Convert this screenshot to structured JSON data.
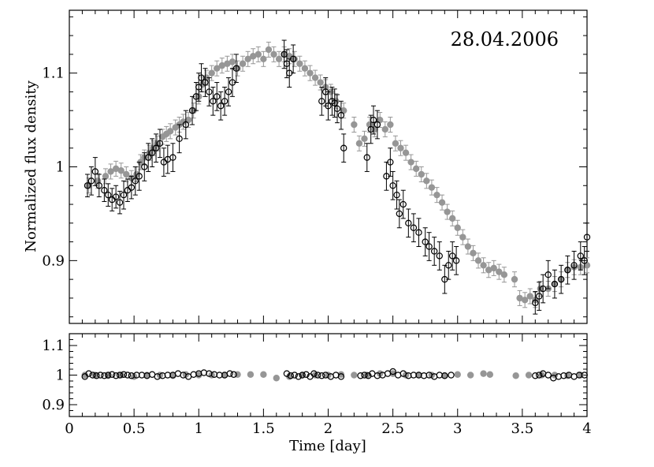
{
  "chart_data": {
    "type": "scatter",
    "annotation": "28.04.2006",
    "xlabel": "Time [day]",
    "xlim": [
      0,
      4
    ],
    "x_ticks": [
      0,
      0.5,
      1,
      1.5,
      2,
      2.5,
      3,
      3.5,
      4
    ],
    "x_tick_labels": [
      "0",
      "0.5",
      "1",
      "1.5",
      "2",
      "2.5",
      "3",
      "3.5",
      "4"
    ],
    "grid": false,
    "panels": [
      {
        "name": "top",
        "ylabel": "Normalized flux density",
        "ylim": [
          0.833,
          1.167
        ],
        "y_ticks": [
          0.9,
          1,
          1.1
        ],
        "y_tick_labels": [
          "0.9",
          "1",
          "1.1"
        ],
        "series": [
          {
            "marker": "filled-gray",
            "x": [
              0.15,
              0.22,
              0.28,
              0.32,
              0.36,
              0.4,
              0.44,
              0.48,
              0.52,
              0.55,
              0.58,
              0.62,
              0.65,
              0.68,
              0.72,
              0.75,
              0.78,
              0.82,
              0.85,
              0.88,
              0.92,
              0.96,
              1.0,
              1.03,
              1.06,
              1.1,
              1.14,
              1.18,
              1.22,
              1.26,
              1.3,
              1.34,
              1.38,
              1.42,
              1.46,
              1.5,
              1.54,
              1.58,
              1.62,
              1.66,
              1.7,
              1.74,
              1.78,
              1.82,
              1.86,
              1.9,
              1.94,
              1.98,
              2.02,
              2.06,
              2.12,
              2.2,
              2.24,
              2.28,
              2.32,
              2.36,
              2.4,
              2.44,
              2.48,
              2.52,
              2.56,
              2.6,
              2.64,
              2.68,
              2.72,
              2.76,
              2.8,
              2.84,
              2.88,
              2.92,
              2.96,
              3.0,
              3.04,
              3.08,
              3.12,
              3.16,
              3.2,
              3.24,
              3.28,
              3.32,
              3.36,
              3.44,
              3.48,
              3.52,
              3.56,
              3.6,
              3.64,
              3.7,
              3.75,
              3.8,
              3.85,
              3.9,
              3.95,
              4.0
            ],
            "y": [
              0.98,
              0.985,
              0.99,
              0.995,
              0.998,
              0.996,
              0.992,
              0.988,
              0.992,
              1.005,
              1.01,
              1.015,
              1.02,
              1.025,
              1.032,
              1.035,
              1.038,
              1.042,
              1.045,
              1.048,
              1.05,
              1.06,
              1.075,
              1.088,
              1.095,
              1.1,
              1.105,
              1.108,
              1.11,
              1.112,
              1.105,
              1.11,
              1.115,
              1.118,
              1.12,
              1.115,
              1.125,
              1.12,
              1.115,
              1.12,
              1.118,
              1.115,
              1.11,
              1.105,
              1.1,
              1.095,
              1.09,
              1.085,
              1.08,
              1.07,
              1.06,
              1.045,
              1.025,
              1.03,
              1.045,
              1.04,
              1.05,
              1.04,
              1.045,
              1.025,
              1.02,
              1.015,
              1.005,
              0.998,
              0.992,
              0.985,
              0.978,
              0.97,
              0.962,
              0.952,
              0.945,
              0.935,
              0.925,
              0.915,
              0.908,
              0.9,
              0.895,
              0.89,
              0.892,
              0.888,
              0.885,
              0.88,
              0.86,
              0.858,
              0.862,
              0.858,
              0.87,
              0.87,
              0.875,
              0.88,
              0.89,
              0.893,
              0.893,
              0.895
            ],
            "err": [
              0.008,
              0.008,
              0.008,
              0.008,
              0.008,
              0.008,
              0.008,
              0.008,
              0.008,
              0.008,
              0.008,
              0.008,
              0.008,
              0.008,
              0.008,
              0.008,
              0.008,
              0.008,
              0.008,
              0.008,
              0.008,
              0.008,
              0.008,
              0.008,
              0.008,
              0.008,
              0.008,
              0.008,
              0.008,
              0.008,
              0.008,
              0.008,
              0.008,
              0.008,
              0.008,
              0.008,
              0.008,
              0.008,
              0.008,
              0.008,
              0.008,
              0.008,
              0.008,
              0.008,
              0.008,
              0.008,
              0.008,
              0.008,
              0.008,
              0.008,
              0.008,
              0.008,
              0.008,
              0.008,
              0.008,
              0.008,
              0.008,
              0.008,
              0.008,
              0.008,
              0.008,
              0.008,
              0.008,
              0.008,
              0.008,
              0.008,
              0.008,
              0.008,
              0.008,
              0.008,
              0.008,
              0.008,
              0.008,
              0.008,
              0.008,
              0.008,
              0.008,
              0.008,
              0.008,
              0.008,
              0.008,
              0.008,
              0.008,
              0.008,
              0.008,
              0.008,
              0.008,
              0.008,
              0.008,
              0.008,
              0.008,
              0.008,
              0.008,
              0.008
            ]
          },
          {
            "marker": "open-black",
            "x": [
              0.14,
              0.17,
              0.2,
              0.23,
              0.27,
              0.3,
              0.33,
              0.36,
              0.39,
              0.42,
              0.45,
              0.48,
              0.51,
              0.54,
              0.58,
              0.61,
              0.64,
              0.67,
              0.7,
              0.73,
              0.76,
              0.8,
              0.85,
              0.9,
              0.95,
              0.98,
              1.0,
              1.02,
              1.05,
              1.08,
              1.11,
              1.14,
              1.17,
              1.2,
              1.23,
              1.26,
              1.29,
              1.66,
              1.68,
              1.7,
              1.73,
              1.95,
              1.98,
              2.0,
              2.03,
              2.05,
              2.07,
              2.1,
              2.12,
              2.3,
              2.33,
              2.35,
              2.38,
              2.45,
              2.48,
              2.5,
              2.53,
              2.55,
              2.58,
              2.62,
              2.66,
              2.7,
              2.75,
              2.78,
              2.82,
              2.86,
              2.9,
              2.93,
              2.96,
              2.99,
              3.6,
              3.63,
              3.66,
              3.7,
              3.75,
              3.8,
              3.85,
              3.9,
              3.95,
              3.98,
              4.0
            ],
            "y": [
              0.98,
              0.985,
              0.995,
              0.98,
              0.975,
              0.97,
              0.965,
              0.968,
              0.962,
              0.97,
              0.975,
              0.978,
              0.985,
              0.99,
              1.0,
              1.01,
              1.015,
              1.02,
              1.025,
              1.005,
              1.008,
              1.01,
              1.03,
              1.045,
              1.06,
              1.075,
              1.085,
              1.095,
              1.09,
              1.08,
              1.07,
              1.075,
              1.065,
              1.07,
              1.08,
              1.09,
              1.105,
              1.12,
              1.11,
              1.1,
              1.115,
              1.07,
              1.08,
              1.065,
              1.07,
              1.068,
              1.062,
              1.055,
              1.02,
              1.01,
              1.04,
              1.05,
              1.045,
              0.99,
              1.005,
              0.98,
              0.97,
              0.95,
              0.96,
              0.94,
              0.935,
              0.93,
              0.92,
              0.915,
              0.91,
              0.905,
              0.88,
              0.895,
              0.905,
              0.9,
              0.855,
              0.862,
              0.87,
              0.885,
              0.875,
              0.88,
              0.89,
              0.895,
              0.905,
              0.9,
              0.925
            ],
            "err": [
              0.012,
              0.015,
              0.015,
              0.012,
              0.012,
              0.012,
              0.012,
              0.012,
              0.012,
              0.015,
              0.012,
              0.012,
              0.015,
              0.015,
              0.015,
              0.015,
              0.015,
              0.015,
              0.015,
              0.015,
              0.015,
              0.015,
              0.015,
              0.015,
              0.015,
              0.015,
              0.015,
              0.015,
              0.015,
              0.015,
              0.015,
              0.015,
              0.015,
              0.015,
              0.015,
              0.015,
              0.015,
              0.015,
              0.015,
              0.015,
              0.015,
              0.015,
              0.015,
              0.015,
              0.015,
              0.015,
              0.015,
              0.015,
              0.015,
              0.015,
              0.015,
              0.015,
              0.015,
              0.015,
              0.015,
              0.015,
              0.015,
              0.015,
              0.015,
              0.015,
              0.015,
              0.015,
              0.015,
              0.015,
              0.015,
              0.015,
              0.015,
              0.015,
              0.015,
              0.015,
              0.012,
              0.015,
              0.015,
              0.015,
              0.015,
              0.015,
              0.015,
              0.015,
              0.015,
              0.015,
              0.015
            ]
          }
        ]
      },
      {
        "name": "bottom",
        "ylim": [
          0.86,
          1.14
        ],
        "y_ticks": [
          0.9,
          1,
          1.1
        ],
        "y_tick_labels": [
          "0.9",
          "1",
          "1.1"
        ],
        "series": [
          {
            "marker": "filled-gray",
            "x": [
              0.12,
              0.2,
              0.3,
              0.4,
              0.5,
              0.6,
              0.7,
              0.8,
              0.9,
              1.0,
              1.1,
              1.2,
              1.3,
              1.4,
              1.5,
              1.6,
              1.7,
              1.8,
              1.9,
              2.0,
              2.1,
              2.2,
              2.3,
              2.4,
              2.5,
              2.6,
              2.7,
              2.8,
              2.9,
              3.0,
              3.1,
              3.2,
              3.25,
              3.45,
              3.55,
              3.65,
              3.75,
              3.85,
              3.95
            ],
            "y": [
              1.0,
              1.0,
              0.998,
              1.0,
              0.995,
              1.0,
              1.0,
              0.998,
              1.002,
              1.0,
              1.0,
              1.0,
              1.002,
              1.002,
              1.002,
              0.99,
              0.995,
              1.0,
              1.0,
              1.0,
              1.002,
              1.0,
              1.0,
              1.005,
              1.005,
              1.0,
              1.0,
              1.0,
              0.998,
              1.002,
              1.0,
              1.005,
              1.002,
              0.998,
              1.0,
              1.0,
              1.0,
              0.998,
              1.0
            ]
          },
          {
            "marker": "open-black",
            "x": [
              0.12,
              0.15,
              0.18,
              0.21,
              0.24,
              0.27,
              0.3,
              0.33,
              0.36,
              0.39,
              0.42,
              0.45,
              0.48,
              0.52,
              0.56,
              0.6,
              0.64,
              0.68,
              0.72,
              0.76,
              0.8,
              0.84,
              0.88,
              0.92,
              0.96,
              1.0,
              1.04,
              1.08,
              1.12,
              1.16,
              1.2,
              1.24,
              1.27,
              1.68,
              1.71,
              1.74,
              1.77,
              1.8,
              1.83,
              1.86,
              1.89,
              1.92,
              1.95,
              1.98,
              2.02,
              2.06,
              2.1,
              2.25,
              2.28,
              2.31,
              2.34,
              2.38,
              2.42,
              2.46,
              2.5,
              2.54,
              2.58,
              2.62,
              2.66,
              2.7,
              2.74,
              2.78,
              2.82,
              2.86,
              2.9,
              2.95,
              3.6,
              3.63,
              3.66,
              3.7,
              3.74,
              3.78,
              3.82,
              3.86,
              3.9,
              3.94,
              3.98
            ],
            "y": [
              0.995,
              1.005,
              1.0,
              0.998,
              1.0,
              0.998,
              1.0,
              1.002,
              0.998,
              1.0,
              1.002,
              1.0,
              0.998,
              1.0,
              1.0,
              0.998,
              1.002,
              0.995,
              0.998,
              1.0,
              1.0,
              1.005,
              1.0,
              0.995,
              1.002,
              1.005,
              1.008,
              1.005,
              1.002,
              1.0,
              1.0,
              1.005,
              1.002,
              1.005,
              0.998,
              1.0,
              0.995,
              1.0,
              1.002,
              0.995,
              1.005,
              1.0,
              0.998,
              1.0,
              0.995,
              1.0,
              0.995,
              0.998,
              1.0,
              0.998,
              1.005,
              0.998,
              1.0,
              1.005,
              1.012,
              1.0,
              1.005,
              0.998,
              1.0,
              1.0,
              0.998,
              1.0,
              0.995,
              1.0,
              0.998,
              1.0,
              0.998,
              1.0,
              1.005,
              1.0,
              0.99,
              0.995,
              0.998,
              1.0,
              0.995,
              1.0,
              1.0
            ]
          }
        ]
      }
    ]
  }
}
